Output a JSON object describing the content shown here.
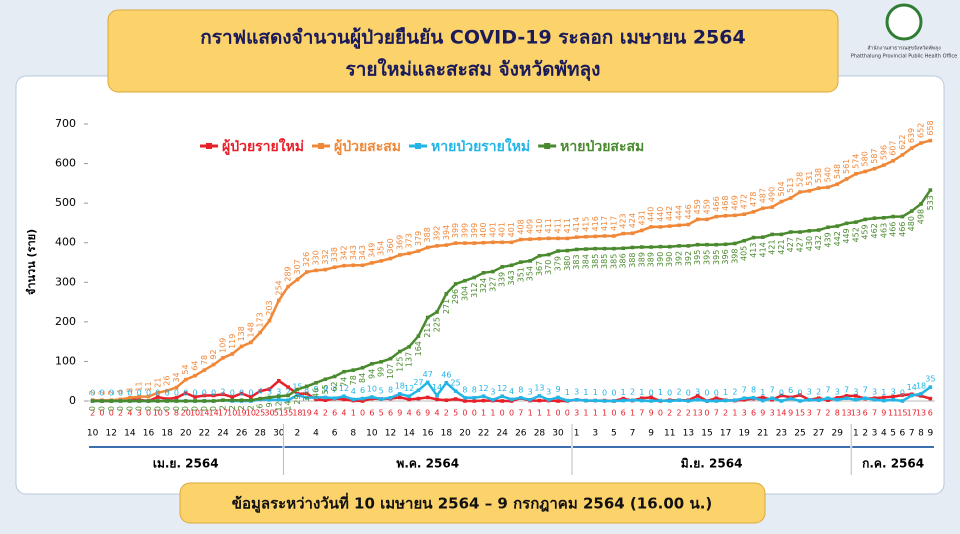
{
  "chart_data": {
    "type": "line",
    "title": "กราฟแสดงจำนวนผู้ป่วยยืนยัน COVID-19 ระลอก เมษายน 2564",
    "subtitle": "รายใหม่และสะสม จังหวัดพัทลุง",
    "y_label": "จำนวน (ราย)",
    "footnote": "ข้อมูลระหว่างวันที่ 10 เมษายน 2564 – 9 กรกฎาคม 2564 (16.00 น.)",
    "logo_text": [
      "สำนักงานสาธารณสุขจังหวัดพัทลุง",
      "Phatthalung Provincial Public Health Office"
    ],
    "months": [
      {
        "label": "เม.ย. 2564",
        "days": [
          "10",
          null,
          "12",
          null,
          "14",
          null,
          "16",
          null,
          "18",
          null,
          "20",
          null,
          "22",
          null,
          "24",
          null,
          "26",
          null,
          "28",
          null,
          "30"
        ]
      },
      {
        "label": "พ.ค. 2564",
        "days": [
          null,
          "2",
          null,
          "4",
          null,
          "6",
          null,
          "8",
          null,
          "10",
          null,
          "12",
          null,
          "14",
          null,
          "16",
          null,
          "18",
          null,
          "20",
          null,
          "22",
          null,
          "24",
          null,
          "26",
          null,
          "28",
          null,
          "30",
          null
        ]
      },
      {
        "label": "มิ.ย. 2564",
        "days": [
          "1",
          null,
          "3",
          null,
          "5",
          null,
          "7",
          null,
          "9",
          null,
          "11",
          null,
          "13",
          null,
          "15",
          null,
          "17",
          null,
          "19",
          null,
          "21",
          null,
          "23",
          null,
          "25",
          null,
          "27",
          null,
          "29",
          null
        ]
      },
      {
        "label": "ก.ค. 2564",
        "days": [
          "1",
          "2",
          "3",
          "4",
          "5",
          "6",
          "7",
          "8",
          "9"
        ]
      }
    ],
    "ylim": [
      0,
      700
    ],
    "yticks": [
      0,
      100,
      200,
      300,
      400,
      500,
      600,
      700
    ],
    "grid": false,
    "legend": "top",
    "series": [
      {
        "name": "ผู้ป่วยรายใหม่",
        "color": "#e8202a",
        "values": [
          2,
          0,
          0,
          2,
          4,
          3,
          0,
          10,
          5,
          8,
          20,
          10,
          14,
          14,
          17,
          10,
          19,
          10,
          25,
          30,
          51,
          35,
          18,
          19,
          4,
          2,
          6,
          4,
          1,
          0,
          6,
          5,
          6,
          9,
          4,
          6,
          9,
          4,
          2,
          5,
          0,
          0,
          1,
          1,
          0,
          0,
          7,
          1,
          1,
          1,
          0,
          0,
          3,
          1,
          1,
          1,
          0,
          6,
          1,
          7,
          9,
          0,
          2,
          2,
          2,
          13,
          0,
          7,
          2,
          1,
          3,
          6,
          9,
          3,
          14,
          9,
          15,
          3,
          7,
          2,
          8,
          13,
          13,
          6,
          7,
          9,
          11,
          15,
          17,
          13,
          6
        ]
      },
      {
        "name": "ผู้ป่วยสะสม",
        "color": "#f0883a",
        "values": [
          2,
          2,
          2,
          4,
          8,
          11,
          11,
          21,
          26,
          34,
          54,
          64,
          78,
          92,
          109,
          119,
          138,
          148,
          173,
          203,
          254,
          289,
          307,
          326,
          330,
          332,
          338,
          342,
          343,
          343,
          349,
          354,
          360,
          369,
          373,
          379,
          388,
          392,
          394,
          399,
          399,
          399,
          400,
          401,
          401,
          401,
          408,
          409,
          410,
          411,
          411,
          411,
          414,
          415,
          416,
          417,
          417,
          423,
          424,
          431,
          440,
          440,
          442,
          444,
          446,
          459,
          459,
          466,
          468,
          469,
          472,
          478,
          487,
          490,
          504,
          513,
          528,
          531,
          538,
          540,
          548,
          561,
          574,
          580,
          587,
          596,
          607,
          622,
          639,
          652,
          658
        ]
      },
      {
        "name": "หายป่วยรายใหม่",
        "color": "#22b5e6",
        "values": [
          0,
          0,
          0,
          0,
          0,
          0,
          0,
          0,
          0,
          0,
          0,
          0,
          0,
          0,
          2,
          0,
          0,
          0,
          4,
          3,
          3,
          2,
          15,
          8,
          9,
          9,
          7,
          12,
          4,
          6,
          10,
          5,
          8,
          18,
          12,
          27,
          47,
          14,
          46,
          25,
          8,
          8,
          12,
          3,
          12,
          4,
          8,
          3,
          13,
          3,
          9,
          1,
          3,
          1,
          1,
          0,
          0,
          1,
          2,
          1,
          0,
          1,
          0,
          2,
          0,
          3,
          0,
          0,
          1,
          2,
          7,
          8,
          1,
          7,
          0,
          6,
          0,
          3,
          2,
          7,
          3,
          7,
          3,
          7,
          3,
          1,
          3,
          0,
          14,
          18,
          35
        ]
      },
      {
        "name": "หายป่วยสะสม",
        "color": "#4a8a2e",
        "values": [
          0,
          0,
          0,
          0,
          0,
          0,
          0,
          0,
          0,
          0,
          0,
          0,
          0,
          0,
          2,
          2,
          2,
          2,
          6,
          9,
          12,
          14,
          29,
          37,
          46,
          55,
          62,
          74,
          78,
          84,
          94,
          99,
          107,
          125,
          137,
          164,
          211,
          225,
          271,
          296,
          304,
          312,
          324,
          327,
          339,
          343,
          351,
          354,
          367,
          370,
          379,
          380,
          383,
          384,
          385,
          385,
          385,
          386,
          388,
          389,
          389,
          390,
          390,
          392,
          392,
          395,
          395,
          395,
          396,
          398,
          405,
          413,
          414,
          421,
          421,
          427,
          427,
          430,
          432,
          439,
          442,
          449,
          452,
          459,
          462,
          463,
          466,
          466,
          480,
          498,
          533
        ]
      }
    ]
  }
}
